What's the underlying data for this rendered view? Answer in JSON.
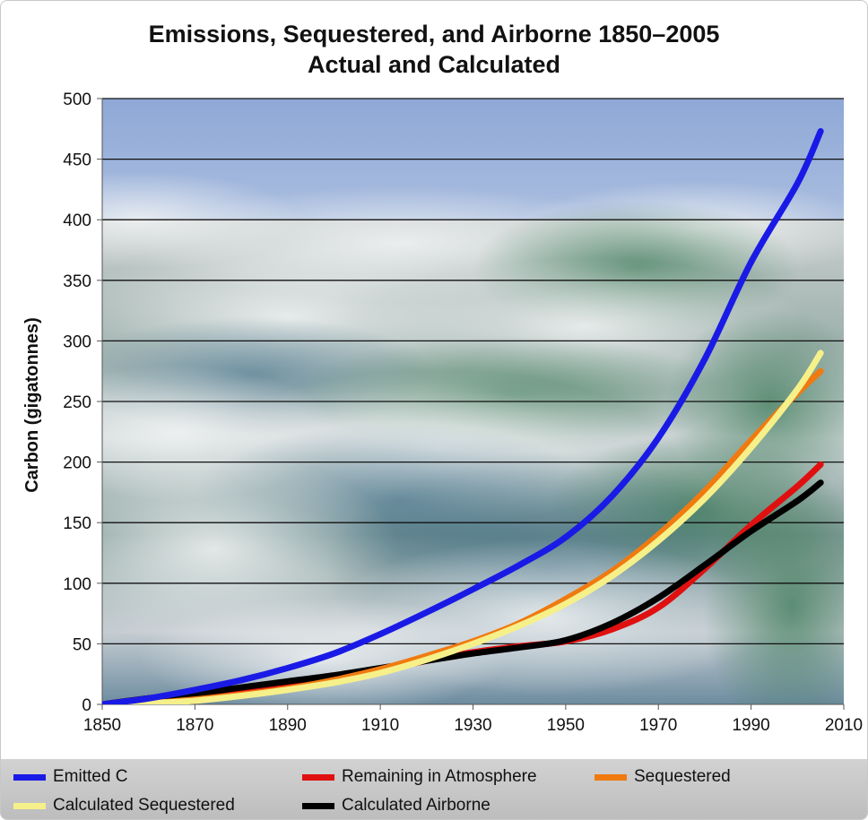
{
  "chart_data": {
    "type": "line",
    "title": "Emissions, Sequestered, and Airborne 1850–2005",
    "subtitle": "Actual and Calculated",
    "xlabel": "",
    "ylabel": "Carbon (gigatonnes)",
    "xlim": [
      1850,
      2010
    ],
    "ylim": [
      0,
      500
    ],
    "x_ticks": [
      "1850",
      "1870",
      "1890",
      "1910",
      "1930",
      "1950",
      "1970",
      "1990",
      "2010"
    ],
    "y_ticks": [
      "0",
      "50",
      "100",
      "150",
      "200",
      "250",
      "300",
      "350",
      "400",
      "450",
      "500"
    ],
    "grid": "horizontal",
    "background": "ocean photograph",
    "legend_position": "bottom",
    "series": [
      {
        "name": "Emitted C",
        "color": "#1a1ae6",
        "x": [
          1850,
          1860,
          1870,
          1880,
          1890,
          1900,
          1910,
          1920,
          1930,
          1940,
          1950,
          1960,
          1970,
          1980,
          1990,
          2000,
          2005
        ],
        "y": [
          0,
          5,
          12,
          20,
          30,
          42,
          58,
          76,
          95,
          115,
          138,
          172,
          220,
          285,
          365,
          430,
          473
        ]
      },
      {
        "name": "Remaining in Atmosphere",
        "color": "#e01010",
        "x": [
          1850,
          1860,
          1870,
          1880,
          1890,
          1900,
          1910,
          1920,
          1930,
          1940,
          1950,
          1960,
          1970,
          1980,
          1990,
          2000,
          2005
        ],
        "y": [
          0,
          5,
          9,
          13,
          17,
          22,
          28,
          36,
          43,
          48,
          52,
          62,
          80,
          112,
          148,
          180,
          198
        ]
      },
      {
        "name": "Sequestered",
        "color": "#f07a10",
        "x": [
          1850,
          1860,
          1870,
          1880,
          1890,
          1900,
          1910,
          1920,
          1930,
          1940,
          1950,
          1960,
          1970,
          1980,
          1990,
          2000,
          2005
        ],
        "y": [
          0,
          1,
          4,
          8,
          13,
          20,
          29,
          40,
          52,
          67,
          87,
          110,
          140,
          176,
          218,
          257,
          275
        ]
      },
      {
        "name": "Calculated Sequestered",
        "color": "#f6f08a",
        "x": [
          1850,
          1860,
          1870,
          1880,
          1890,
          1900,
          1910,
          1920,
          1930,
          1940,
          1950,
          1960,
          1970,
          1980,
          1990,
          2000,
          2005
        ],
        "y": [
          0,
          1,
          3,
          7,
          12,
          18,
          26,
          37,
          50,
          65,
          83,
          106,
          135,
          170,
          212,
          260,
          290
        ]
      },
      {
        "name": "Calculated Airborne",
        "color": "#000000",
        "x": [
          1850,
          1860,
          1870,
          1880,
          1890,
          1900,
          1910,
          1920,
          1930,
          1940,
          1950,
          1960,
          1970,
          1980,
          1990,
          2000,
          2005
        ],
        "y": [
          0,
          5,
          9,
          14,
          19,
          24,
          30,
          36,
          42,
          47,
          53,
          67,
          88,
          115,
          143,
          168,
          183
        ]
      }
    ]
  }
}
